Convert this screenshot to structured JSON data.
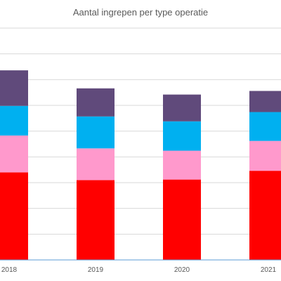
{
  "chart_data": {
    "type": "bar",
    "stacked": true,
    "title": "Aantal ingrepen per type operatie",
    "categories": [
      "2018",
      "2019",
      "2020",
      "2021"
    ],
    "series": [
      {
        "color": "#ff0000",
        "values": [
          3400,
          3100,
          3120,
          3460
        ]
      },
      {
        "color": "#ff99cc",
        "values": [
          1430,
          1230,
          1120,
          1160
        ]
      },
      {
        "color": "#00b0f0",
        "values": [
          1150,
          1240,
          1140,
          1120
        ]
      },
      {
        "color": "#604a7b",
        "values": [
          1380,
          1090,
          1040,
          820
        ]
      }
    ],
    "ylim": [
      0,
      9000
    ],
    "grid": true,
    "legend": "none",
    "y_tick_labels_visible": false
  },
  "colors": {
    "gridline": "#d9d9d9",
    "axis": "#5b9bd5",
    "text": "#595959"
  }
}
